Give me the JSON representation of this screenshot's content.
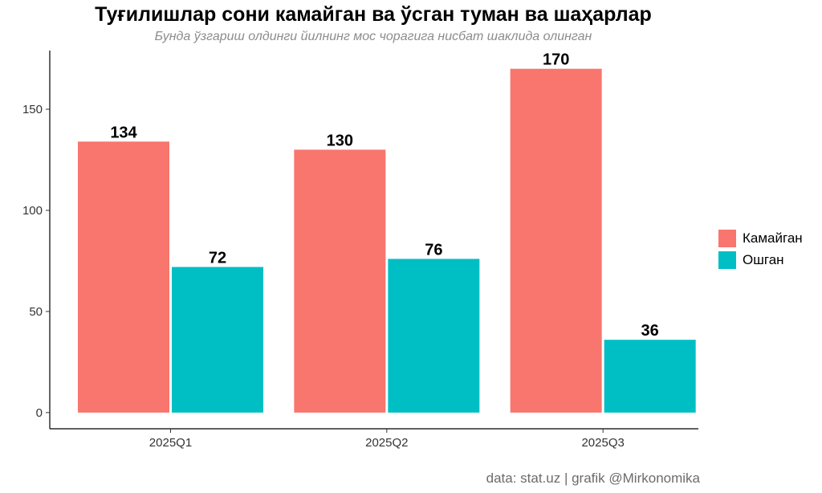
{
  "chart_data": {
    "type": "bar",
    "title": "Туғилишлар сони камайган ва ўсган туман ва шаҳарлар",
    "subtitle": "Бунда ўзгариш олдинги йилнинг мос чорагига нисбат шаклида олинган",
    "categories": [
      "2025Q1",
      "2025Q2",
      "2025Q3"
    ],
    "series": [
      {
        "name": "Камайган",
        "color": "#f8766d",
        "values": [
          134,
          130,
          170
        ]
      },
      {
        "name": "Ошган",
        "color": "#00bfc4",
        "values": [
          72,
          76,
          36
        ]
      }
    ],
    "yticks": [
      0,
      50,
      100,
      150
    ],
    "ylim": [
      -8,
      179
    ],
    "xlabel": "",
    "ylabel": "",
    "legend_position": "right",
    "caption": "data: stat.uz | grafik @Mirkonomika"
  }
}
